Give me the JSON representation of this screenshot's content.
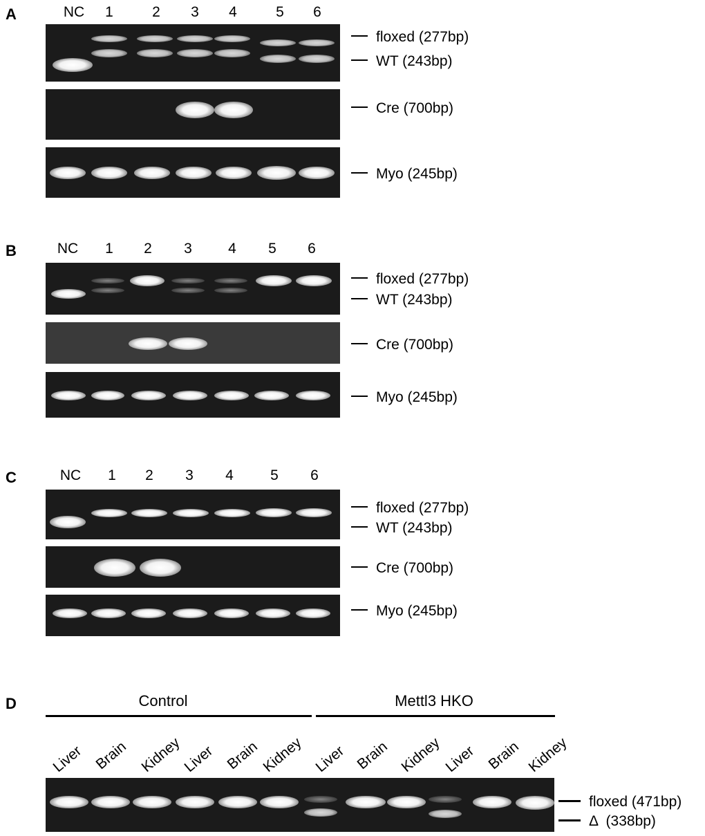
{
  "panels": {
    "a": {
      "letter": "A",
      "lanes": [
        "NC",
        "1",
        "2",
        "3",
        "4",
        "5",
        "6"
      ],
      "markers": {
        "floxed": "floxed (277bp)",
        "wt": "WT (243bp)",
        "cre": "Cre (700bp)",
        "myo": "Myo (245bp)"
      }
    },
    "b": {
      "letter": "B",
      "lanes": [
        "NC",
        "1",
        "2",
        "3",
        "4",
        "5",
        "6"
      ],
      "markers": {
        "floxed": "floxed (277bp)",
        "wt": "WT (243bp)",
        "cre": "Cre (700bp)",
        "myo": "Myo (245bp)"
      }
    },
    "c": {
      "letter": "C",
      "lanes": [
        "NC",
        "1",
        "2",
        "3",
        "4",
        "5",
        "6"
      ],
      "markers": {
        "floxed": "floxed (277bp)",
        "wt": "WT (243bp)",
        "cre": "Cre (700bp)",
        "myo": "Myo (245bp)"
      }
    },
    "d": {
      "letter": "D",
      "control": "Control",
      "hko": "Mettl3 HKO",
      "tissues": [
        "Liver",
        "Brain",
        "Kidney",
        "Liver",
        "Brain",
        "Kidney",
        "Liver",
        "Brain",
        "Kidney",
        "Liver",
        "Brain",
        "Kidney"
      ],
      "markers": {
        "floxed": "floxed (471bp)",
        "delta": "Δ  (338bp)"
      }
    }
  }
}
